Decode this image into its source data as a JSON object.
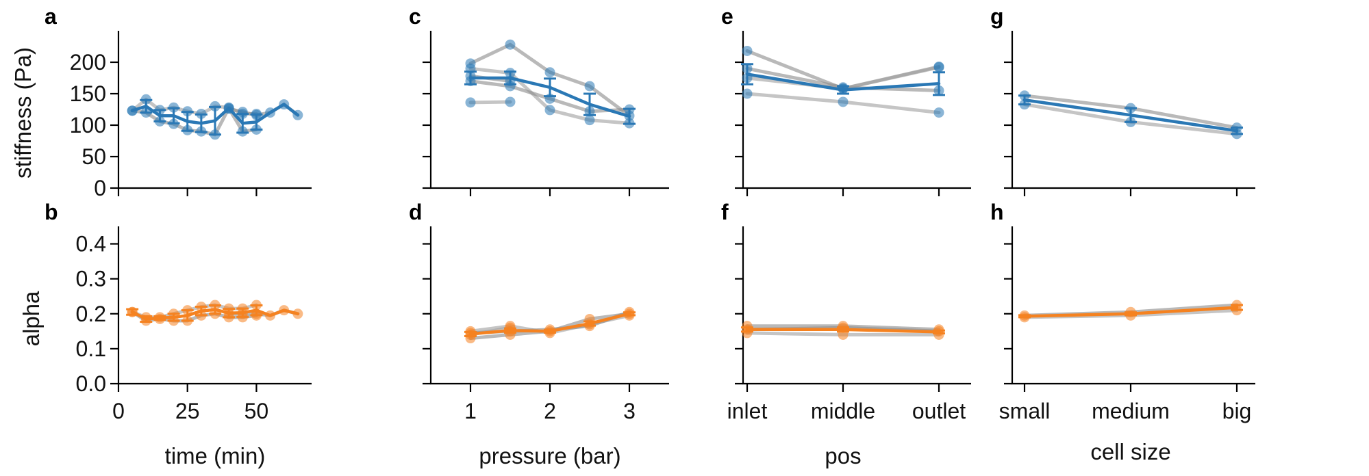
{
  "colors": {
    "stiffness": "#2a78b5",
    "alpha": "#f58220",
    "individual": "#9e9e9e",
    "individual_dark": "#8a8a8a"
  },
  "y_axes": {
    "top": {
      "label": "stiffness (Pa)",
      "ylim": [
        0,
        250
      ],
      "ticks": [
        0,
        50,
        100,
        150,
        200
      ],
      "tick_labels": [
        "0",
        "50",
        "100",
        "150",
        "200"
      ]
    },
    "bottom": {
      "label": "alpha",
      "ylim": [
        0,
        0.45
      ],
      "ticks": [
        0,
        0.1,
        0.2,
        0.3,
        0.4
      ],
      "tick_labels": [
        "0.0",
        "0.1",
        "0.2",
        "0.3",
        "0.4"
      ]
    }
  },
  "x_axes": [
    {
      "label": "time (min)",
      "type": "linear",
      "xlim": [
        0,
        70
      ],
      "ticks": [
        0,
        25,
        50
      ],
      "tick_labels": [
        "0",
        "25",
        "50"
      ]
    },
    {
      "label": "pressure (bar)",
      "type": "linear",
      "xlim": [
        0.5,
        3.5
      ],
      "ticks": [
        1,
        2,
        3
      ],
      "tick_labels": [
        "1",
        "2",
        "3"
      ]
    },
    {
      "label": "pos",
      "type": "category",
      "categories": [
        "inlet",
        "middle",
        "outlet"
      ],
      "tick_labels": [
        "inlet",
        "middle",
        "outlet"
      ]
    },
    {
      "label": "cell size",
      "type": "category",
      "categories": [
        "small",
        "medium",
        "big"
      ],
      "tick_labels": [
        "small",
        "medium",
        "big"
      ]
    }
  ],
  "chart_data": [
    {
      "panel": "a",
      "type": "line",
      "row": "top",
      "col": 0,
      "individual": [
        {
          "x": [
            5,
            10,
            15,
            20,
            25,
            30,
            35,
            40,
            45,
            50
          ],
          "y": [
            123,
            120,
            106,
            102,
            92,
            90,
            85,
            127,
            90,
            93
          ]
        },
        {
          "x": [
            5,
            10,
            15,
            20,
            25,
            30,
            35,
            40,
            45,
            50
          ],
          "y": [
            123,
            141,
            124,
            128,
            122,
            118,
            130,
            128,
            118,
            118
          ]
        },
        {
          "x": [
            40,
            45,
            50,
            55,
            60,
            65
          ],
          "y": [
            126,
            121,
            116,
            120,
            133,
            116
          ]
        }
      ],
      "mean": {
        "x": [
          5,
          10,
          15,
          20,
          25,
          30,
          35,
          40,
          45,
          50,
          55,
          60,
          65
        ],
        "y": [
          123,
          130,
          115,
          115,
          106,
          103,
          107,
          127,
          103,
          105,
          120,
          133,
          116
        ],
        "err": [
          0,
          10,
          9,
          12,
          15,
          14,
          22,
          0,
          15,
          12,
          0,
          0,
          0
        ]
      }
    },
    {
      "panel": "b",
      "type": "line",
      "row": "bottom",
      "col": 0,
      "individual": [
        {
          "x": [
            5,
            10,
            15,
            20,
            25,
            30,
            35,
            40,
            45,
            50
          ],
          "y": [
            0.205,
            0.18,
            0.185,
            0.18,
            0.18,
            0.195,
            0.2,
            0.19,
            0.19,
            0.195
          ]
        },
        {
          "x": [
            5,
            10,
            15,
            20,
            25,
            30,
            35,
            40,
            45,
            50
          ],
          "y": [
            0.205,
            0.19,
            0.19,
            0.2,
            0.21,
            0.22,
            0.225,
            0.215,
            0.215,
            0.225
          ]
        },
        {
          "x": [
            40,
            45,
            50,
            55,
            60,
            65
          ],
          "y": [
            0.2,
            0.2,
            0.2,
            0.195,
            0.21,
            0.2
          ]
        }
      ],
      "mean": {
        "x": [
          5,
          10,
          15,
          20,
          25,
          30,
          35,
          40,
          45,
          50,
          55,
          60,
          65
        ],
        "y": [
          0.205,
          0.185,
          0.188,
          0.19,
          0.195,
          0.208,
          0.212,
          0.202,
          0.203,
          0.21,
          0.195,
          0.21,
          0.2
        ],
        "err": [
          0.008,
          0.008,
          0.005,
          0.01,
          0.015,
          0.012,
          0.012,
          0.012,
          0.012,
          0.014,
          0,
          0,
          0
        ]
      }
    },
    {
      "panel": "c",
      "type": "line",
      "row": "top",
      "col": 1,
      "individual": [
        {
          "x": [
            1,
            1.5,
            2,
            2.5,
            3
          ],
          "y": [
            198,
            228,
            184,
            162,
            115
          ]
        },
        {
          "x": [
            1,
            1.5,
            2,
            2.5,
            3
          ],
          "y": [
            190,
            183,
            124,
            108,
            103
          ]
        },
        {
          "x": [
            1,
            1.5,
            2,
            2.5,
            3
          ],
          "y": [
            170,
            162,
            142,
            122,
            125
          ]
        },
        {
          "x": [
            1,
            1.5
          ],
          "y": [
            136,
            137
          ]
        },
        {
          "x": [
            1,
            1.5
          ],
          "y": [
            178,
            170
          ]
        }
      ],
      "mean": {
        "x": [
          1,
          1.5,
          2,
          2.5,
          3
        ],
        "y": [
          175,
          175,
          160,
          133,
          114
        ],
        "err": [
          10,
          10,
          14,
          17,
          12
        ]
      }
    },
    {
      "panel": "d",
      "type": "line",
      "row": "bottom",
      "col": 1,
      "individual": [
        {
          "x": [
            1,
            1.5,
            2,
            2.5,
            3
          ],
          "y": [
            0.13,
            0.14,
            0.15,
            0.185,
            0.2
          ]
        },
        {
          "x": [
            1,
            1.5,
            2,
            2.5,
            3
          ],
          "y": [
            0.15,
            0.165,
            0.145,
            0.17,
            0.195
          ]
        },
        {
          "x": [
            1,
            1.5,
            2,
            2.5,
            3
          ],
          "y": [
            0.145,
            0.15,
            0.155,
            0.165,
            0.205
          ]
        },
        {
          "x": [
            1,
            1.5
          ],
          "y": [
            0.14,
            0.16
          ]
        }
      ],
      "mean": {
        "x": [
          1,
          1.5,
          2,
          2.5,
          3
        ],
        "y": [
          0.142,
          0.152,
          0.15,
          0.172,
          0.2
        ],
        "err": [
          0.006,
          0.006,
          0.004,
          0.006,
          0.004
        ]
      }
    },
    {
      "panel": "e",
      "type": "line",
      "row": "top",
      "col": 2,
      "individual": [
        {
          "x": [
            "inlet",
            "middle",
            "outlet"
          ],
          "y": [
            218,
            158,
            193
          ]
        },
        {
          "x": [
            "inlet",
            "middle",
            "outlet"
          ],
          "y": [
            150,
            137,
            120
          ]
        },
        {
          "x": [
            "inlet",
            "middle",
            "outlet"
          ],
          "y": [
            190,
            160,
            155
          ]
        },
        {
          "x": [
            "inlet",
            "middle",
            "outlet"
          ],
          "y": [
            175,
            158,
            192
          ]
        }
      ],
      "mean": {
        "x": [
          "inlet",
          "middle",
          "outlet"
        ],
        "y": [
          181,
          156,
          166
        ],
        "err": [
          16,
          6,
          18
        ]
      }
    },
    {
      "panel": "f",
      "type": "line",
      "row": "bottom",
      "col": 2,
      "individual": [
        {
          "x": [
            "inlet",
            "middle",
            "outlet"
          ],
          "y": [
            0.165,
            0.165,
            0.155
          ]
        },
        {
          "x": [
            "inlet",
            "middle",
            "outlet"
          ],
          "y": [
            0.145,
            0.14,
            0.14
          ]
        },
        {
          "x": [
            "inlet",
            "middle",
            "outlet"
          ],
          "y": [
            0.155,
            0.16,
            0.15
          ]
        }
      ],
      "mean": {
        "x": [
          "inlet",
          "middle",
          "outlet"
        ],
        "y": [
          0.155,
          0.155,
          0.148
        ],
        "err": [
          0.006,
          0.006,
          0.004
        ]
      }
    },
    {
      "panel": "g",
      "type": "line",
      "row": "top",
      "col": 3,
      "individual": [
        {
          "x": [
            "small",
            "medium",
            "big"
          ],
          "y": [
            147,
            127,
            96
          ]
        },
        {
          "x": [
            "small",
            "medium",
            "big"
          ],
          "y": [
            133,
            105,
            86
          ]
        }
      ],
      "mean": {
        "x": [
          "small",
          "medium",
          "big"
        ],
        "y": [
          140,
          116,
          91
        ],
        "err": [
          7,
          11,
          5
        ]
      }
    },
    {
      "panel": "h",
      "type": "line",
      "row": "bottom",
      "col": 3,
      "individual": [
        {
          "x": [
            "small",
            "medium",
            "big"
          ],
          "y": [
            0.195,
            0.205,
            0.225
          ]
        },
        {
          "x": [
            "small",
            "medium",
            "big"
          ],
          "y": [
            0.19,
            0.195,
            0.21
          ]
        }
      ],
      "mean": {
        "x": [
          "small",
          "medium",
          "big"
        ],
        "y": [
          0.193,
          0.2,
          0.218
        ],
        "err": [
          0.003,
          0.004,
          0.007
        ]
      }
    }
  ]
}
